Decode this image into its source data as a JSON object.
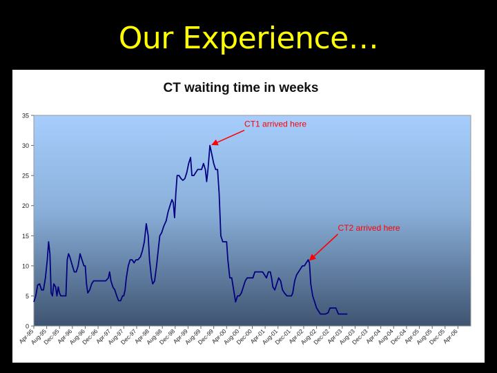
{
  "slide": {
    "title": "Our Experience…"
  },
  "chart_data": {
    "type": "line",
    "title": "CT waiting time in weeks",
    "xlabel": "",
    "ylabel": "",
    "ylim": [
      0,
      35
    ],
    "yticks": [
      0,
      5,
      10,
      15,
      20,
      25,
      30,
      35
    ],
    "grid": false,
    "background": "gradient light-blue to slate",
    "line_color": "#000080",
    "annotation_color": "#ff0000",
    "categories": [
      "Apr-95",
      "Aug-95",
      "Dec-95",
      "Apr-96",
      "Aug-96",
      "Dec-96",
      "Apr-97",
      "Aug-97",
      "Dec-97",
      "Apr-98",
      "Aug-98",
      "Dec-98",
      "Apr-99",
      "Aug-99",
      "Dec-99",
      "Apr-00",
      "Aug-00",
      "Dec-00",
      "Apr-01",
      "Aug-01",
      "Dec-01",
      "Apr-02",
      "Aug-02",
      "Dec-02",
      "Apr-03",
      "Aug-03",
      "Dec-03",
      "Apr-04",
      "Aug-04",
      "Dec-04",
      "Apr-05",
      "Aug-05",
      "Dec-05",
      "Apr-06"
    ],
    "series": [
      {
        "points": [
          [
            0,
            4
          ],
          [
            0.15,
            5
          ],
          [
            0.3,
            6.8
          ],
          [
            0.45,
            7
          ],
          [
            0.6,
            6
          ],
          [
            0.75,
            6
          ],
          [
            0.9,
            8
          ],
          [
            1.05,
            11
          ],
          [
            1.15,
            14
          ],
          [
            1.25,
            12
          ],
          [
            1.35,
            5.5
          ],
          [
            1.45,
            5
          ],
          [
            1.55,
            7
          ],
          [
            1.7,
            6.5
          ],
          [
            1.8,
            5
          ],
          [
            1.9,
            6.5
          ],
          [
            2,
            5.5
          ],
          [
            2.1,
            5
          ],
          [
            2.3,
            5
          ],
          [
            2.5,
            5
          ],
          [
            2.6,
            11
          ],
          [
            2.7,
            12
          ],
          [
            2.8,
            11.5
          ],
          [
            3,
            10
          ],
          [
            3.15,
            9
          ],
          [
            3.3,
            9
          ],
          [
            3.45,
            10
          ],
          [
            3.6,
            12
          ],
          [
            3.75,
            11
          ],
          [
            3.9,
            10
          ],
          [
            4,
            10
          ],
          [
            4.1,
            7
          ],
          [
            4.2,
            5.5
          ],
          [
            4.35,
            6
          ],
          [
            4.5,
            7
          ],
          [
            4.65,
            7.5
          ],
          [
            4.8,
            7.5
          ],
          [
            5,
            7.5
          ],
          [
            5.3,
            7.5
          ],
          [
            5.6,
            7.5
          ],
          [
            5.8,
            8
          ],
          [
            5.9,
            9
          ],
          [
            6,
            7.5
          ],
          [
            6.15,
            6.5
          ],
          [
            6.3,
            6
          ],
          [
            6.45,
            5
          ],
          [
            6.6,
            4.2
          ],
          [
            6.75,
            4.2
          ],
          [
            6.9,
            5
          ],
          [
            7,
            5
          ],
          [
            7.1,
            6
          ],
          [
            7.2,
            8
          ],
          [
            7.35,
            10
          ],
          [
            7.5,
            11
          ],
          [
            7.65,
            11
          ],
          [
            7.8,
            10.5
          ],
          [
            7.95,
            11
          ],
          [
            8.1,
            11
          ],
          [
            8.3,
            11.5
          ],
          [
            8.45,
            12.5
          ],
          [
            8.6,
            14
          ],
          [
            8.75,
            17
          ],
          [
            8.9,
            15
          ],
          [
            9,
            11
          ],
          [
            9.15,
            8
          ],
          [
            9.25,
            7
          ],
          [
            9.4,
            7.5
          ],
          [
            9.55,
            10
          ],
          [
            9.7,
            13
          ],
          [
            9.8,
            15
          ],
          [
            9.95,
            15.5
          ],
          [
            10.1,
            16.5
          ],
          [
            10.3,
            17.5
          ],
          [
            10.45,
            19
          ],
          [
            10.6,
            20
          ],
          [
            10.75,
            21
          ],
          [
            10.85,
            20.5
          ],
          [
            10.95,
            18
          ],
          [
            11.05,
            22
          ],
          [
            11.15,
            25
          ],
          [
            11.3,
            25
          ],
          [
            11.45,
            24.5
          ],
          [
            11.6,
            24.2
          ],
          [
            11.75,
            24.5
          ],
          [
            11.9,
            25.5
          ],
          [
            12.05,
            27
          ],
          [
            12.2,
            28
          ],
          [
            12.3,
            25
          ],
          [
            12.45,
            25
          ],
          [
            12.6,
            25.5
          ],
          [
            12.75,
            26
          ],
          [
            12.9,
            26
          ],
          [
            13.05,
            26
          ],
          [
            13.2,
            27
          ],
          [
            13.35,
            26
          ],
          [
            13.45,
            24
          ],
          [
            13.55,
            26
          ],
          [
            13.7,
            30
          ],
          [
            13.85,
            28.5
          ],
          [
            14,
            27
          ],
          [
            14.15,
            26
          ],
          [
            14.3,
            26
          ],
          [
            14.42,
            22
          ],
          [
            14.55,
            15
          ],
          [
            14.7,
            14
          ],
          [
            14.85,
            14
          ],
          [
            15,
            14
          ],
          [
            15.1,
            11
          ],
          [
            15.25,
            8
          ],
          [
            15.4,
            8
          ],
          [
            15.55,
            6
          ],
          [
            15.7,
            4
          ],
          [
            15.85,
            5
          ],
          [
            16,
            5
          ],
          [
            16.15,
            5.5
          ],
          [
            16.3,
            6.5
          ],
          [
            16.45,
            7.5
          ],
          [
            16.6,
            8
          ],
          [
            16.75,
            8
          ],
          [
            16.9,
            8
          ],
          [
            17.05,
            8
          ],
          [
            17.2,
            9
          ],
          [
            17.4,
            9
          ],
          [
            17.6,
            9
          ],
          [
            17.8,
            9
          ],
          [
            17.95,
            8.5
          ],
          [
            18.1,
            8
          ],
          [
            18.25,
            9
          ],
          [
            18.4,
            9
          ],
          [
            18.5,
            8
          ],
          [
            18.6,
            6.5
          ],
          [
            18.75,
            6
          ],
          [
            18.9,
            7
          ],
          [
            19.05,
            8
          ],
          [
            19.2,
            7.5
          ],
          [
            19.35,
            6
          ],
          [
            19.5,
            5.5
          ],
          [
            19.7,
            5
          ],
          [
            19.9,
            5
          ],
          [
            20.05,
            5
          ],
          [
            20.15,
            5.5
          ],
          [
            20.3,
            7.5
          ],
          [
            20.45,
            8.5
          ],
          [
            20.6,
            9
          ],
          [
            20.75,
            9.5
          ],
          [
            20.9,
            10
          ],
          [
            21.05,
            10
          ],
          [
            21.2,
            10.5
          ],
          [
            21.35,
            11
          ],
          [
            21.45,
            10.5
          ],
          [
            21.55,
            7
          ],
          [
            21.7,
            5
          ],
          [
            21.85,
            4
          ],
          [
            22,
            3
          ],
          [
            22.15,
            2.5
          ],
          [
            22.3,
            2
          ],
          [
            22.5,
            2
          ],
          [
            22.7,
            2
          ],
          [
            22.9,
            2.2
          ],
          [
            23.05,
            3
          ],
          [
            23.2,
            3
          ],
          [
            23.35,
            3
          ],
          [
            23.5,
            3
          ],
          [
            23.6,
            2.5
          ],
          [
            23.7,
            2
          ],
          [
            23.85,
            2
          ],
          [
            24,
            2
          ],
          [
            24.2,
            2
          ],
          [
            24.4,
            2
          ]
        ]
      }
    ],
    "annotations": [
      {
        "text": "CT1 arrived here",
        "x": 13.7,
        "y": 30
      },
      {
        "text": "CT2 arrived here",
        "x": 21.3,
        "y": 10.8
      }
    ]
  }
}
